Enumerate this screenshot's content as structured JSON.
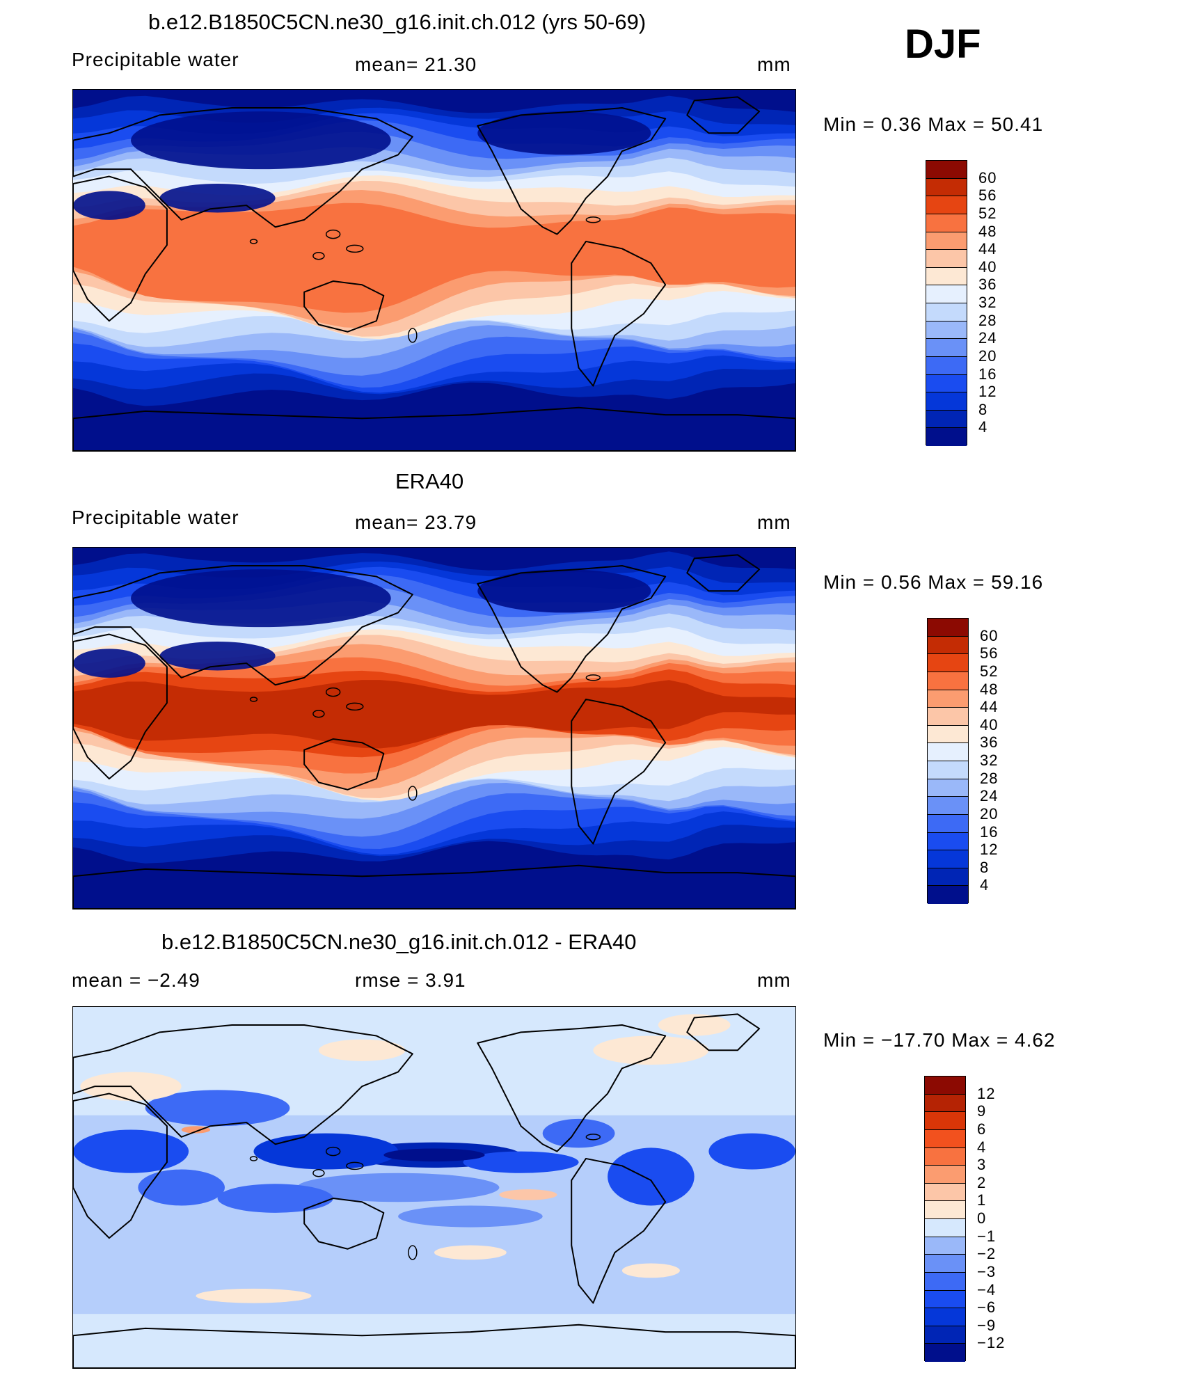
{
  "season": "DJF",
  "panels": [
    {
      "title": "b.e12.B1850C5CN.ne30_g16.init.ch.012 (yrs 50-69)",
      "variable": "Precipitable  water",
      "stat1": "mean=   21.30",
      "stat2": "",
      "units": "mm",
      "minmax": "Min  =     0.36  Max  =    50.41",
      "palette": "abs",
      "fields": {
        "itcz": 0.72,
        "pacific_warm": 0.7,
        "amazon": 0.8,
        "africa": 0.68,
        "polar": 0.02
      },
      "colorbar_labels": [
        "60",
        "56",
        "52",
        "48",
        "44",
        "40",
        "36",
        "32",
        "28",
        "24",
        "20",
        "16",
        "12",
        "8",
        "4"
      ]
    },
    {
      "title": "ERA40",
      "variable": "Precipitable  water",
      "stat1": "mean=   23.79",
      "stat2": "",
      "units": "mm",
      "minmax": "Min  =     0.56  Max  =    59.16",
      "palette": "abs",
      "fields": {
        "itcz": 0.85,
        "pacific_warm": 0.92,
        "amazon": 0.9,
        "africa": 0.8,
        "polar": 0.03
      },
      "colorbar_labels": [
        "60",
        "56",
        "52",
        "48",
        "44",
        "40",
        "36",
        "32",
        "28",
        "24",
        "20",
        "16",
        "12",
        "8",
        "4"
      ]
    },
    {
      "title": "b.e12.B1850C5CN.ne30_g16.init.ch.012 - ERA40",
      "variable": "mean  =    −2.49",
      "stat1": "rmse  =     3.91",
      "stat2": "",
      "units": "mm",
      "minmax": "Min  =  −17.70  Max  =     4.62",
      "palette": "diff",
      "fields": {},
      "colorbar_labels": [
        "12",
        "9",
        "6",
        "4",
        "3",
        "2",
        "1",
        "0",
        "−1",
        "−2",
        "−3",
        "−4",
        "−6",
        "−9",
        "−12"
      ]
    }
  ],
  "colors": {
    "abs": [
      "#000f8c",
      "#0025b5",
      "#0537d9",
      "#1a4cf0",
      "#3d6af5",
      "#6a91f7",
      "#9ab8f9",
      "#c4dafc",
      "#e6f0fe",
      "#fde8d4",
      "#fcc6a8",
      "#fb9c70",
      "#f87240",
      "#e64512",
      "#c42c04",
      "#8c0a02"
    ],
    "diff": [
      "#000f8c",
      "#0025b5",
      "#0537d9",
      "#1a4cf0",
      "#3d6af5",
      "#6a91f7",
      "#9ab8f9",
      "#d6e8fd",
      "#fde8d4",
      "#fcc6a8",
      "#fb9c70",
      "#f87240",
      "#f2511e",
      "#d93608",
      "#b52304",
      "#8c0a02"
    ]
  }
}
